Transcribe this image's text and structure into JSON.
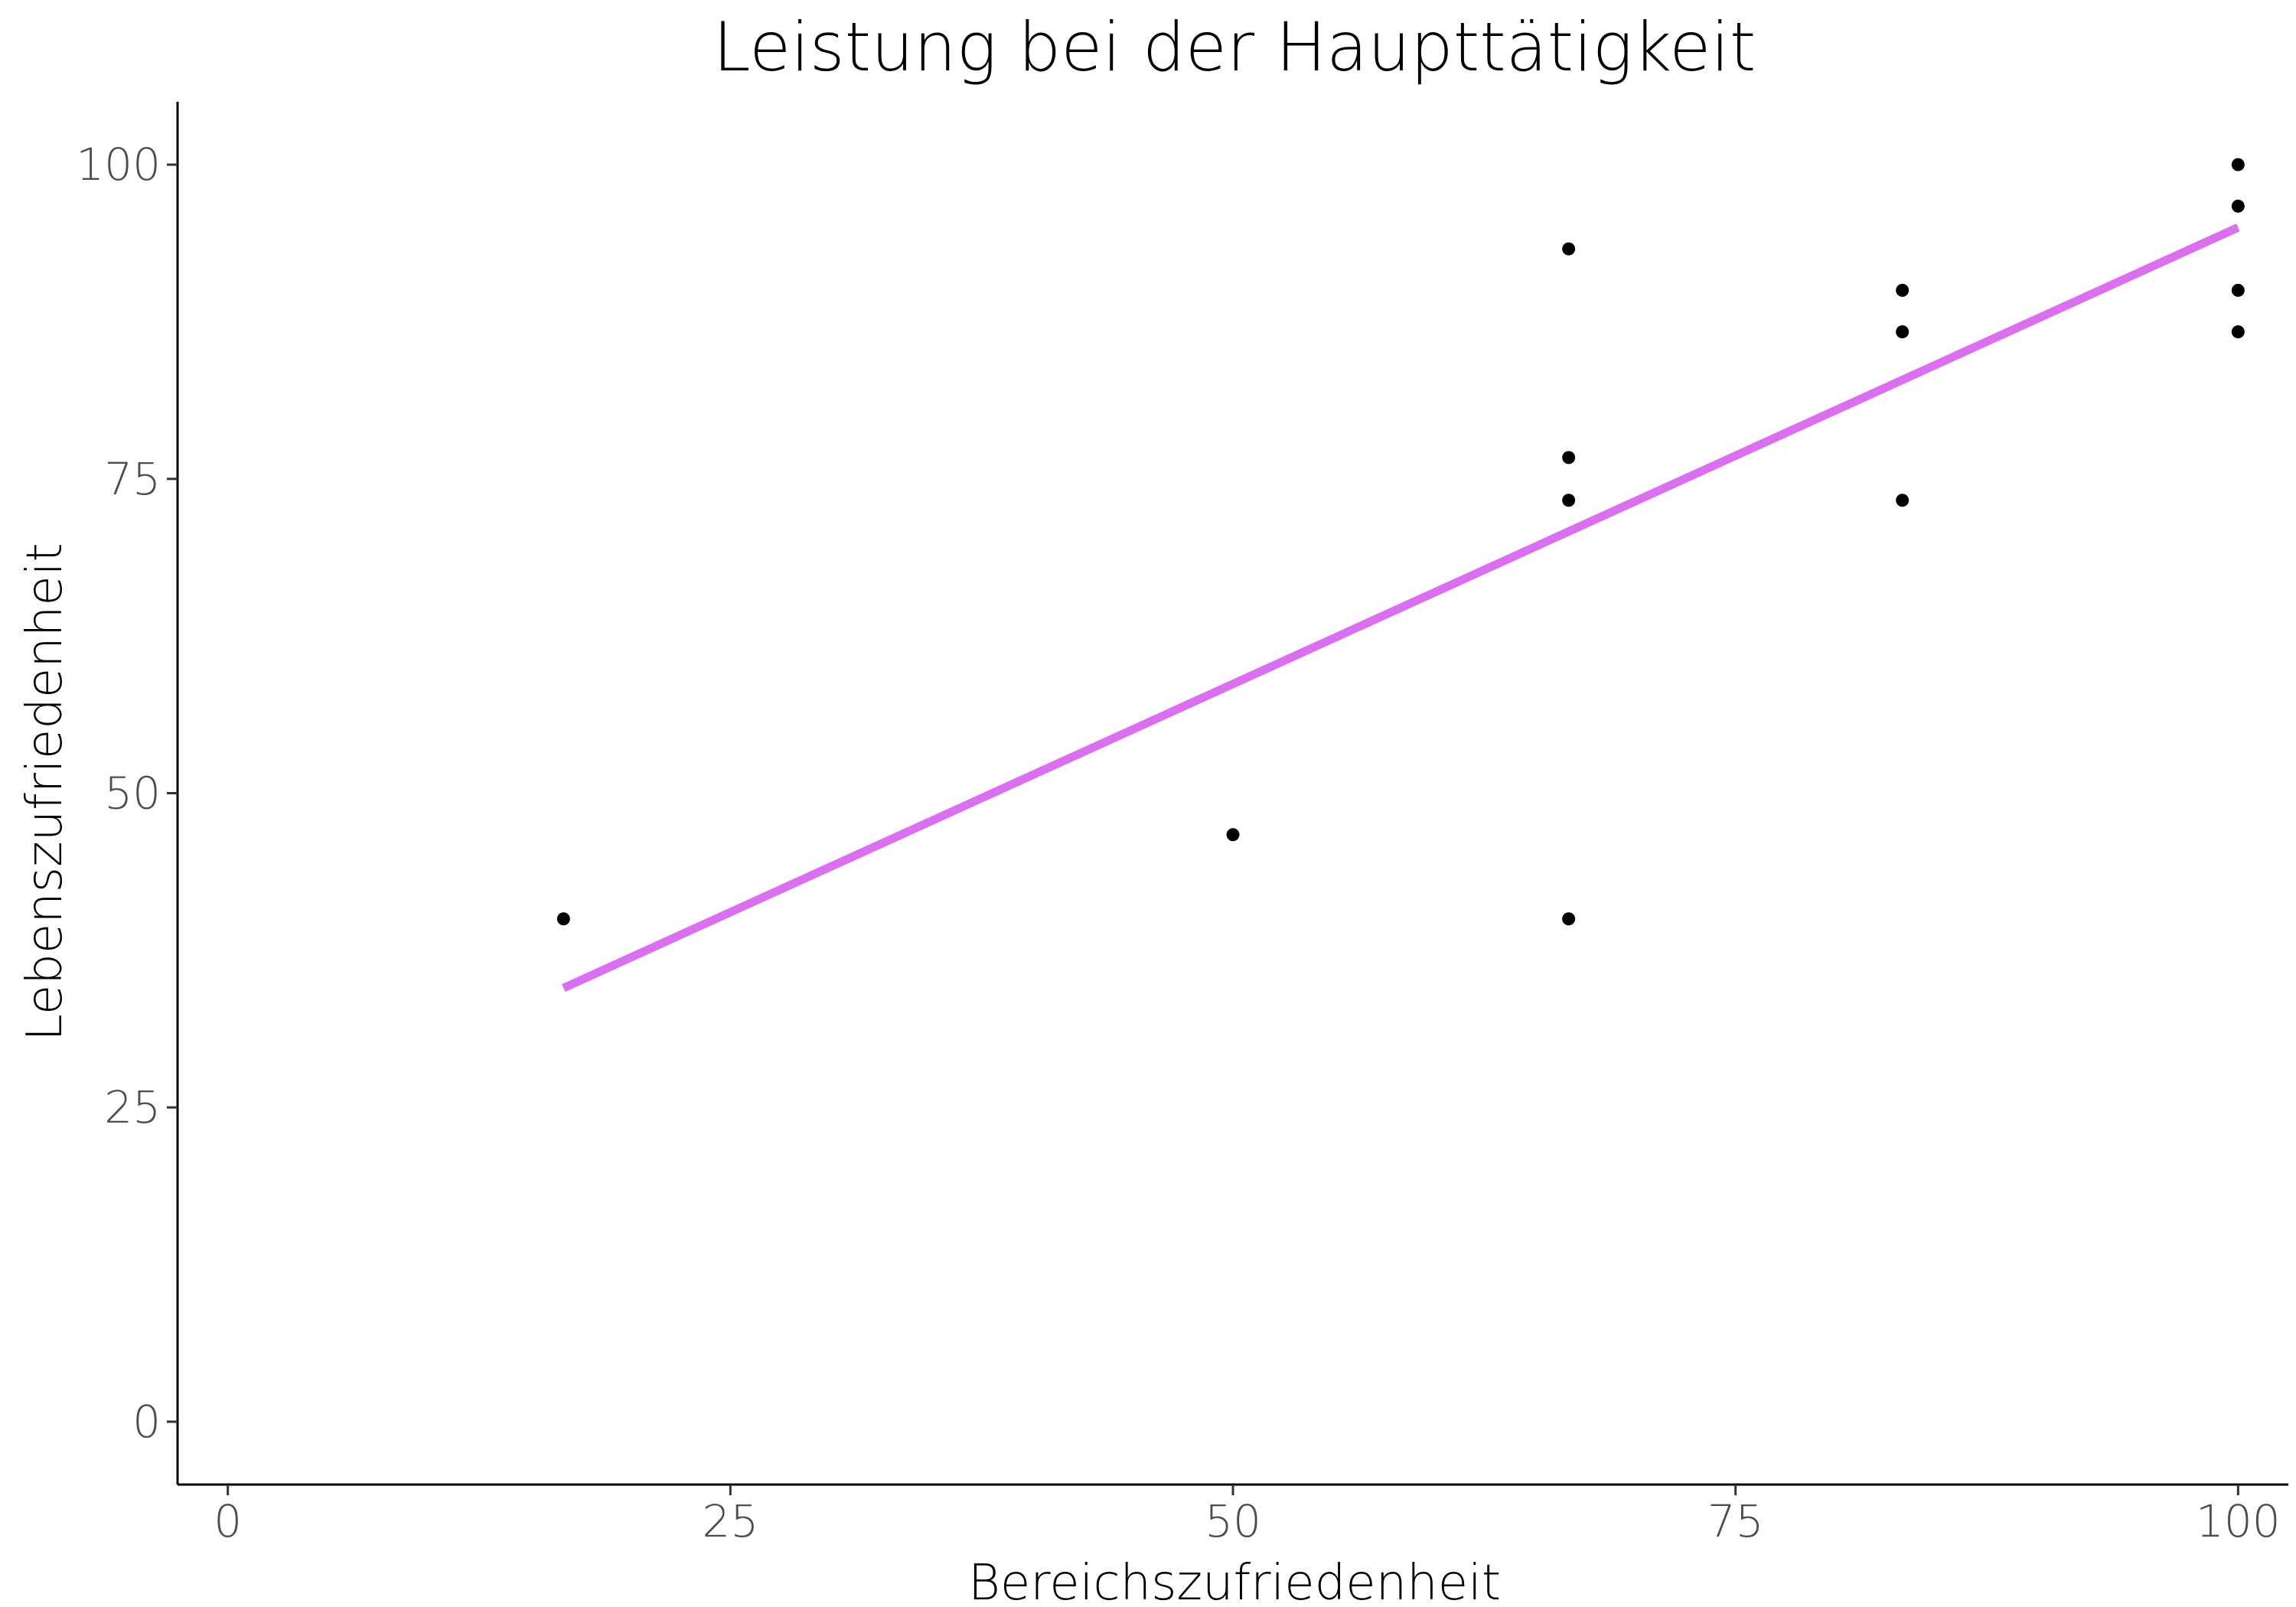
{
  "chart_data": {
    "type": "scatter",
    "title": "Leistung bei der Haupttätigkeit",
    "xlabel": "Bereichszufriedenheit",
    "ylabel": "Lebenszufriedenheit",
    "xlim": [
      -2.5,
      102.5
    ],
    "ylim": [
      -5,
      105
    ],
    "x_ticks": [
      0,
      25,
      50,
      75,
      100
    ],
    "y_ticks": [
      0,
      25,
      50,
      75,
      100
    ],
    "x_tick_labels": [
      "0",
      "25",
      "50",
      "75",
      "100"
    ],
    "y_tick_labels": [
      "0",
      "25",
      "50",
      "75",
      "100"
    ],
    "grid": false,
    "points": [
      {
        "x": 16.7,
        "y": 40
      },
      {
        "x": 50,
        "y": 46.7
      },
      {
        "x": 66.7,
        "y": 93.3
      },
      {
        "x": 66.7,
        "y": 76.7
      },
      {
        "x": 66.7,
        "y": 73.3
      },
      {
        "x": 66.7,
        "y": 40
      },
      {
        "x": 83.3,
        "y": 90
      },
      {
        "x": 83.3,
        "y": 86.7
      },
      {
        "x": 83.3,
        "y": 73.3
      },
      {
        "x": 100,
        "y": 100
      },
      {
        "x": 100,
        "y": 96.7
      },
      {
        "x": 100,
        "y": 90
      },
      {
        "x": 100,
        "y": 86.7
      }
    ],
    "trendline": {
      "x": [
        16.7,
        100
      ],
      "y": [
        34.5,
        95
      ]
    },
    "colors": {
      "points": "#000000",
      "trendline": "#DA70F0"
    }
  }
}
